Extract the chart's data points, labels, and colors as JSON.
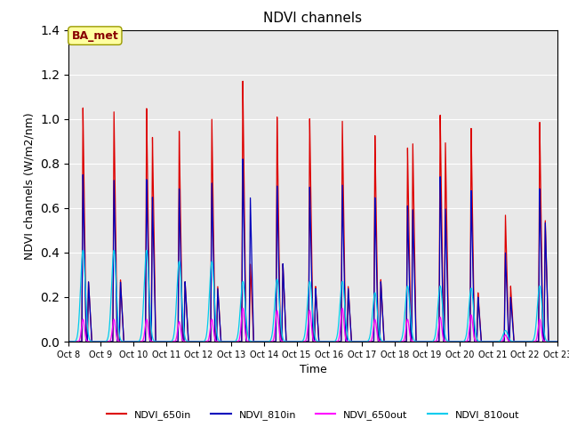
{
  "title": "NDVI channels",
  "xlabel": "Time",
  "ylabel": "NDVI channels (W/m2/nm)",
  "xlim": [
    0,
    15
  ],
  "ylim": [
    0,
    1.4
  ],
  "yticks": [
    0.0,
    0.2,
    0.4,
    0.6,
    0.8,
    1.0,
    1.2,
    1.4
  ],
  "xtick_labels": [
    "Oct 8",
    "Oct 9",
    "Oct 10",
    "Oct 11",
    "Oct 12",
    "Oct 13",
    "Oct 14",
    "Oct 15",
    "Oct 16",
    "Oct 17",
    "Oct 18",
    "Oct 19",
    "Oct 20",
    "Oct 21",
    "Oct 22",
    "Oct 23"
  ],
  "annotation_text": "BA_met",
  "bg_color": "#e8e8e8",
  "grid_color": "#ffffff",
  "colors": {
    "NDVI_650in": "#dd0000",
    "NDVI_810in": "#0000bb",
    "NDVI_650out": "#ff00ff",
    "NDVI_810out": "#00ccee"
  },
  "n_days": 15,
  "spike_centers": [
    0.45,
    1.4,
    2.4,
    3.4,
    4.4,
    5.35,
    6.4,
    7.4,
    8.4,
    9.4,
    10.4,
    11.4,
    12.35,
    13.4,
    14.45
  ],
  "spikes_650in": [
    1.05,
    1.04,
    1.05,
    0.95,
    1.01,
    1.17,
    1.01,
    1.01,
    1.0,
    0.93,
    0.87,
    1.03,
    0.96,
    0.57,
    0.99
  ],
  "spikes_810in": [
    0.75,
    0.73,
    0.73,
    0.69,
    0.72,
    0.82,
    0.7,
    0.7,
    0.71,
    0.65,
    0.61,
    0.75,
    0.68,
    0.4,
    0.69
  ],
  "spikes_650out": [
    0.1,
    0.1,
    0.1,
    0.09,
    0.1,
    0.15,
    0.14,
    0.14,
    0.15,
    0.1,
    0.1,
    0.11,
    0.12,
    0.03,
    0.1
  ],
  "spikes_810out": [
    0.41,
    0.41,
    0.41,
    0.36,
    0.36,
    0.27,
    0.28,
    0.27,
    0.27,
    0.22,
    0.25,
    0.25,
    0.24,
    0.05,
    0.25
  ],
  "extra_650in": [
    0.27,
    0.28,
    0.92,
    0.27,
    0.25,
    0.35,
    0.35,
    0.25,
    0.25,
    0.28,
    0.9,
    0.9,
    0.22,
    0.25,
    0.55
  ],
  "extra_810in": [
    0.27,
    0.27,
    0.65,
    0.27,
    0.24,
    0.65,
    0.35,
    0.24,
    0.24,
    0.27,
    0.6,
    0.6,
    0.2,
    0.2,
    0.54
  ],
  "extra_centers": [
    0.62,
    1.6,
    2.58,
    3.58,
    4.58,
    5.58,
    6.58,
    7.58,
    8.58,
    9.58,
    10.56,
    11.56,
    12.56,
    13.56,
    14.62
  ]
}
